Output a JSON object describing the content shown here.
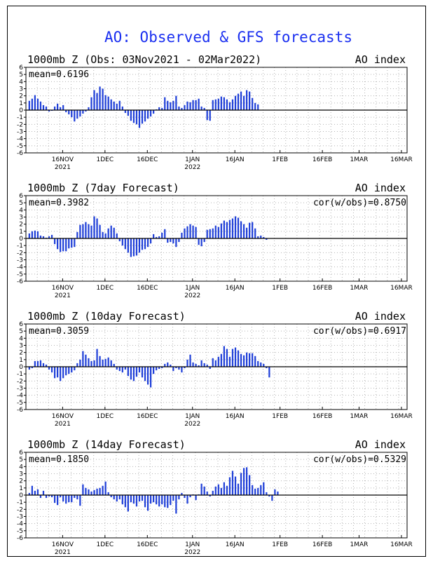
{
  "title": "AO: Observed & GFS forecasts",
  "colors": {
    "bar": "#1f3fd8",
    "title": "#1a2ff0",
    "grid": "#b4b4b4",
    "frame": "#000000"
  },
  "chart_data": [
    {
      "type": "bar",
      "panel_title": "1000mb Z (Obs: 03Nov2021 - 02Mar2022)",
      "right_label": "AO index",
      "mean_label": "mean=0.6196",
      "cor_label": "",
      "ylim": [
        -6,
        6
      ],
      "y_ticks": [
        "6",
        "5",
        "4",
        "3",
        "2",
        "1",
        "0",
        "-1",
        "-2",
        "-3",
        "-4",
        "-5",
        "-6"
      ],
      "x_tick_labels": [
        {
          "day": 13,
          "label": "16NOV",
          "sub": "2021"
        },
        {
          "day": 28,
          "label": "1DEC",
          "sub": ""
        },
        {
          "day": 43,
          "label": "16DEC",
          "sub": ""
        },
        {
          "day": 59,
          "label": "1JAN",
          "sub": "2022"
        },
        {
          "day": 74,
          "label": "16JAN",
          "sub": ""
        },
        {
          "day": 90,
          "label": "1FEB",
          "sub": ""
        },
        {
          "day": 105,
          "label": "16FEB",
          "sub": ""
        },
        {
          "day": 118,
          "label": "1MAR",
          "sub": ""
        },
        {
          "day": 133,
          "label": "16MAR",
          "sub": ""
        }
      ],
      "values": [
        1.3,
        1.6,
        2.1,
        1.6,
        1.2,
        0.7,
        0.5,
        -0.2,
        -0.1,
        0.5,
        0.9,
        0.4,
        0.7,
        -0.3,
        -0.6,
        -1.0,
        -1.6,
        -1.2,
        -0.9,
        -0.5,
        -0.2,
        0.4,
        1.8,
        2.8,
        2.4,
        3.3,
        3.0,
        2.1,
        1.9,
        1.5,
        1.2,
        0.9,
        1.3,
        0.5,
        -0.4,
        -0.8,
        -1.5,
        -1.8,
        -2.0,
        -2.5,
        -1.9,
        -1.6,
        -1.2,
        -0.9,
        -0.5,
        0.1,
        0.4,
        0.3,
        1.8,
        1.3,
        1.1,
        1.3,
        2.0,
        0.5,
        0.3,
        0.7,
        1.2,
        1.1,
        1.4,
        1.4,
        1.6,
        0.5,
        0.3,
        -1.4,
        -1.5,
        1.4,
        1.5,
        1.6,
        1.9,
        1.8,
        1.5,
        1.1,
        1.5,
        2.0,
        2.3,
        2.6,
        2.0,
        2.8,
        2.6,
        1.7,
        1.0,
        0.8
      ]
    },
    {
      "type": "bar",
      "panel_title": "1000mb Z (7day Forecast)",
      "right_label": "AO index",
      "mean_label": "mean=0.3982",
      "cor_label": "cor(w/obs)=0.8750",
      "ylim": [
        -6,
        6
      ],
      "y_ticks": [
        "6",
        "5",
        "4",
        "3",
        "2",
        "1",
        "0",
        "-1",
        "-2",
        "-3",
        "-4",
        "-5",
        "-6"
      ],
      "x_tick_labels": [
        {
          "day": 13,
          "label": "16NOV",
          "sub": "2021"
        },
        {
          "day": 28,
          "label": "1DEC",
          "sub": ""
        },
        {
          "day": 43,
          "label": "16DEC",
          "sub": ""
        },
        {
          "day": 59,
          "label": "1JAN",
          "sub": "2022"
        },
        {
          "day": 74,
          "label": "16JAN",
          "sub": ""
        },
        {
          "day": 90,
          "label": "1FEB",
          "sub": ""
        },
        {
          "day": 105,
          "label": "16FEB",
          "sub": ""
        },
        {
          "day": 118,
          "label": "1MAR",
          "sub": ""
        },
        {
          "day": 133,
          "label": "16MAR",
          "sub": ""
        }
      ],
      "values": [
        0.7,
        1.0,
        1.1,
        1.0,
        0.4,
        0.3,
        0.1,
        0.3,
        0.5,
        -0.8,
        -1.5,
        -1.9,
        -1.8,
        -1.8,
        -1.4,
        -1.3,
        -1.2,
        0.9,
        1.9,
        2.0,
        2.3,
        2.0,
        1.8,
        3.1,
        2.8,
        1.9,
        0.9,
        0.7,
        1.4,
        1.8,
        1.5,
        0.7,
        -0.4,
        -1.0,
        -1.5,
        -2.0,
        -2.6,
        -2.5,
        -2.4,
        -2.0,
        -1.6,
        -1.5,
        -1.2,
        -0.7,
        0.6,
        0.2,
        0.3,
        0.8,
        1.3,
        -0.6,
        -0.5,
        -0.7,
        -1.2,
        -0.5,
        0.8,
        1.4,
        1.7,
        2.0,
        1.8,
        1.6,
        -0.9,
        -1.1,
        -0.5,
        1.2,
        1.3,
        1.4,
        1.8,
        1.6,
        2.1,
        2.5,
        2.3,
        2.6,
        2.8,
        3.1,
        2.9,
        2.4,
        2.0,
        1.5,
        2.2,
        2.3,
        1.4,
        0.3,
        0.4,
        0.2,
        -0.2
      ]
    },
    {
      "type": "bar",
      "panel_title": "1000mb Z (10day Forecast)",
      "right_label": "AO index",
      "mean_label": "mean=0.3059",
      "cor_label": "cor(w/obs)=0.6917",
      "ylim": [
        -6,
        6
      ],
      "y_ticks": [
        "6",
        "5",
        "4",
        "3",
        "2",
        "1",
        "0",
        "-1",
        "-2",
        "-3",
        "-4",
        "-5",
        "-6"
      ],
      "x_tick_labels": [
        {
          "day": 13,
          "label": "16NOV",
          "sub": "2021"
        },
        {
          "day": 28,
          "label": "1DEC",
          "sub": ""
        },
        {
          "day": 43,
          "label": "16DEC",
          "sub": ""
        },
        {
          "day": 59,
          "label": "1JAN",
          "sub": "2022"
        },
        {
          "day": 74,
          "label": "16JAN",
          "sub": ""
        },
        {
          "day": 90,
          "label": "1FEB",
          "sub": ""
        },
        {
          "day": 105,
          "label": "16FEB",
          "sub": ""
        },
        {
          "day": 118,
          "label": "1MAR",
          "sub": ""
        },
        {
          "day": 133,
          "label": "16MAR",
          "sub": ""
        }
      ],
      "values": [
        -0.4,
        -0.2,
        0.8,
        0.8,
        0.9,
        0.5,
        0.3,
        -0.4,
        -0.8,
        -1.6,
        -1.5,
        -2.0,
        -1.6,
        -1.2,
        -1.0,
        -0.8,
        -0.5,
        0.5,
        1.0,
        2.2,
        1.7,
        1.2,
        0.8,
        0.9,
        2.5,
        1.5,
        1.0,
        1.1,
        1.3,
        0.9,
        0.4,
        -0.4,
        -0.6,
        -0.8,
        -0.4,
        -1.3,
        -1.8,
        -2.0,
        -1.4,
        -0.8,
        -1.5,
        -2.0,
        -2.5,
        -2.9,
        -1.0,
        -0.5,
        -0.3,
        -0.2,
        0.4,
        0.6,
        0.3,
        -0.6,
        -0.2,
        -0.4,
        -0.8,
        -0.2,
        1.0,
        1.7,
        0.6,
        0.4,
        0.2,
        0.9,
        0.5,
        0.3,
        -0.3,
        1.2,
        0.9,
        1.4,
        1.8,
        2.9,
        2.5,
        1.4,
        2.5,
        2.7,
        2.3,
        1.8,
        1.6,
        2.0,
        1.9,
        1.9,
        1.5,
        0.8,
        0.6,
        0.4,
        -0.2,
        -1.5
      ]
    },
    {
      "type": "bar",
      "panel_title": "1000mb Z (14day Forecast)",
      "right_label": "AO index",
      "mean_label": "mean=0.1850",
      "cor_label": "cor(w/obs)=0.5329",
      "ylim": [
        -6,
        6
      ],
      "y_ticks": [
        "6",
        "5",
        "4",
        "3",
        "2",
        "1",
        "0",
        "-1",
        "-2",
        "-3",
        "-4",
        "-5",
        "-6"
      ],
      "x_tick_labels": [
        {
          "day": 13,
          "label": "16NOV",
          "sub": "2021"
        },
        {
          "day": 28,
          "label": "1DEC",
          "sub": ""
        },
        {
          "day": 43,
          "label": "16DEC",
          "sub": ""
        },
        {
          "day": 59,
          "label": "1JAN",
          "sub": "2022"
        },
        {
          "day": 74,
          "label": "16JAN",
          "sub": ""
        },
        {
          "day": 90,
          "label": "1FEB",
          "sub": ""
        },
        {
          "day": 105,
          "label": "16FEB",
          "sub": ""
        },
        {
          "day": 118,
          "label": "1MAR",
          "sub": ""
        },
        {
          "day": 133,
          "label": "16MAR",
          "sub": ""
        }
      ],
      "values": [
        0.3,
        1.3,
        0.6,
        0.8,
        -0.4,
        0.6,
        -0.4,
        -0.2,
        -0.3,
        -1.1,
        -1.4,
        -0.3,
        -0.9,
        -1.2,
        -1.0,
        -1.0,
        -0.4,
        -0.6,
        -1.5,
        1.5,
        1.0,
        0.8,
        0.5,
        0.7,
        0.9,
        1.0,
        1.3,
        1.9,
        0.4,
        -0.3,
        -0.6,
        -0.9,
        -0.6,
        -1.3,
        -1.7,
        -2.3,
        -1.0,
        -1.2,
        -1.6,
        -0.9,
        -0.8,
        -1.7,
        -2.2,
        -1.2,
        -1.0,
        -1.3,
        -1.6,
        -1.3,
        -1.7,
        -1.8,
        -1.4,
        -0.8,
        -2.6,
        -0.6,
        0.3,
        -0.4,
        -1.2,
        -0.3,
        0.1,
        -0.7,
        0.1,
        1.6,
        1.2,
        0.5,
        -0.2,
        0.6,
        1.2,
        1.5,
        1.0,
        1.8,
        1.3,
        2.5,
        3.4,
        2.6,
        1.6,
        3.1,
        3.8,
        3.9,
        2.8,
        1.4,
        0.9,
        1.0,
        1.4,
        1.8,
        0.4,
        -0.2,
        -0.8,
        0.8,
        0.5
      ]
    }
  ]
}
